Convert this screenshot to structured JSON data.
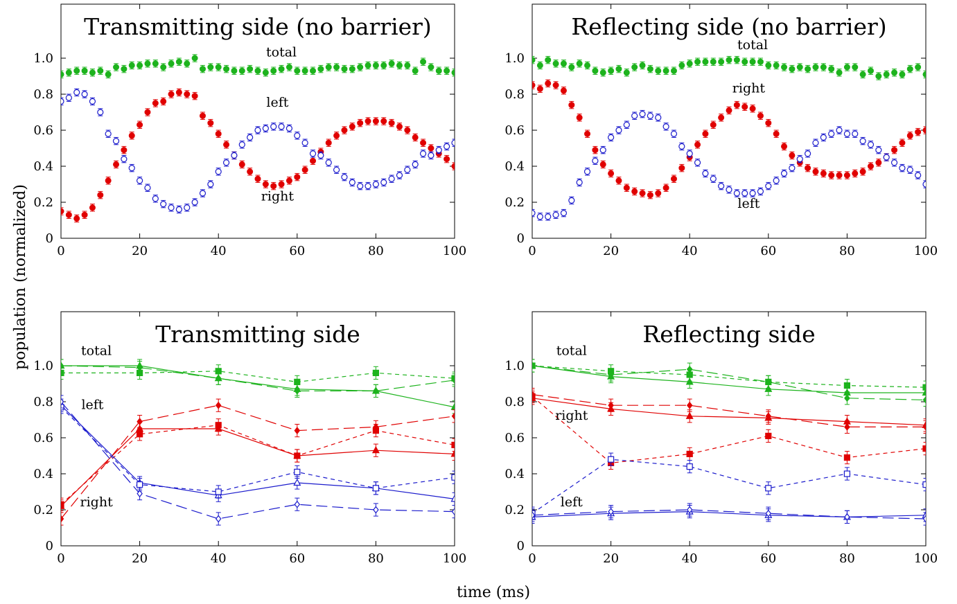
{
  "figure": {
    "ylabel": "population (normalized)",
    "xlabel": "time (ms)"
  },
  "colors": {
    "total": "#1db31d",
    "right": "#e00000",
    "left": "#1a1acc"
  },
  "chart_data": [
    {
      "type": "scatter",
      "title": "Transmitting side (no barrier)",
      "xlim": [
        0,
        100
      ],
      "ylim": [
        0,
        1.3
      ],
      "xticks": [
        0,
        20,
        40,
        60,
        80,
        100
      ],
      "yticks": [
        0,
        0.2,
        0.4,
        0.6,
        0.8,
        1.0
      ],
      "xtick_labels": [
        "0",
        "20",
        "40",
        "60",
        "80",
        "100"
      ],
      "ytick_labels": [
        "0",
        "0.2",
        "0.4",
        "0.6",
        "0.8",
        "1.0"
      ],
      "grid": false,
      "series": [
        {
          "color": "total",
          "marker": "filled-circle",
          "x": [
            0,
            2,
            4,
            6,
            8,
            10,
            12,
            14,
            16,
            18,
            20,
            22,
            24,
            26,
            28,
            30,
            32,
            34,
            36,
            38,
            40,
            42,
            44,
            46,
            48,
            50,
            52,
            54,
            56,
            58,
            60,
            62,
            64,
            66,
            68,
            70,
            72,
            74,
            76,
            78,
            80,
            82,
            84,
            86,
            88,
            90,
            92,
            94,
            96,
            98,
            100
          ],
          "y": [
            0.91,
            0.92,
            0.93,
            0.93,
            0.92,
            0.93,
            0.91,
            0.95,
            0.94,
            0.96,
            0.96,
            0.97,
            0.97,
            0.95,
            0.97,
            0.98,
            0.97,
            1.0,
            0.94,
            0.95,
            0.95,
            0.94,
            0.93,
            0.93,
            0.94,
            0.93,
            0.92,
            0.93,
            0.94,
            0.95,
            0.93,
            0.93,
            0.93,
            0.94,
            0.95,
            0.95,
            0.94,
            0.94,
            0.95,
            0.96,
            0.96,
            0.96,
            0.97,
            0.96,
            0.96,
            0.93,
            0.98,
            0.95,
            0.93,
            0.93,
            0.92
          ]
        },
        {
          "color": "right",
          "marker": "filled-circle",
          "x": [
            0,
            2,
            4,
            6,
            8,
            10,
            12,
            14,
            16,
            18,
            20,
            22,
            24,
            26,
            28,
            30,
            32,
            34,
            36,
            38,
            40,
            42,
            44,
            46,
            48,
            50,
            52,
            54,
            56,
            58,
            60,
            62,
            64,
            66,
            68,
            70,
            72,
            74,
            76,
            78,
            80,
            82,
            84,
            86,
            88,
            90,
            92,
            94,
            96,
            98,
            100
          ],
          "y": [
            0.15,
            0.13,
            0.11,
            0.13,
            0.17,
            0.24,
            0.32,
            0.41,
            0.49,
            0.57,
            0.63,
            0.7,
            0.75,
            0.76,
            0.8,
            0.81,
            0.8,
            0.79,
            0.68,
            0.64,
            0.58,
            0.52,
            0.46,
            0.41,
            0.37,
            0.33,
            0.3,
            0.29,
            0.3,
            0.32,
            0.34,
            0.38,
            0.43,
            0.48,
            0.53,
            0.57,
            0.6,
            0.62,
            0.64,
            0.65,
            0.65,
            0.65,
            0.64,
            0.62,
            0.6,
            0.56,
            0.53,
            0.5,
            0.47,
            0.44,
            0.4
          ]
        },
        {
          "color": "left",
          "marker": "open-circle",
          "x": [
            0,
            2,
            4,
            6,
            8,
            10,
            12,
            14,
            16,
            18,
            20,
            22,
            24,
            26,
            28,
            30,
            32,
            34,
            36,
            38,
            40,
            42,
            44,
            46,
            48,
            50,
            52,
            54,
            56,
            58,
            60,
            62,
            64,
            66,
            68,
            70,
            72,
            74,
            76,
            78,
            80,
            82,
            84,
            86,
            88,
            90,
            92,
            94,
            96,
            98,
            100
          ],
          "y": [
            0.76,
            0.78,
            0.81,
            0.8,
            0.76,
            0.7,
            0.58,
            0.54,
            0.44,
            0.39,
            0.32,
            0.28,
            0.22,
            0.19,
            0.17,
            0.16,
            0.17,
            0.2,
            0.25,
            0.3,
            0.37,
            0.42,
            0.46,
            0.52,
            0.56,
            0.6,
            0.61,
            0.62,
            0.62,
            0.61,
            0.57,
            0.53,
            0.47,
            0.46,
            0.42,
            0.38,
            0.34,
            0.31,
            0.29,
            0.29,
            0.3,
            0.31,
            0.33,
            0.35,
            0.38,
            0.41,
            0.47,
            0.46,
            0.49,
            0.51,
            0.53
          ]
        }
      ],
      "annotations": [
        {
          "text": "total",
          "x": 56,
          "y": 1.01
        },
        {
          "text": "left",
          "x": 55,
          "y": 0.73
        },
        {
          "text": "right",
          "x": 55,
          "y": 0.21
        }
      ]
    },
    {
      "type": "scatter",
      "title": "Reflecting side (no barrier)",
      "xlim": [
        0,
        100
      ],
      "ylim": [
        0,
        1.3
      ],
      "xticks": [
        0,
        20,
        40,
        60,
        80,
        100
      ],
      "yticks": [
        0,
        0.2,
        0.4,
        0.6,
        0.8,
        1.0
      ],
      "xtick_labels": [
        "0",
        "20",
        "40",
        "60",
        "80",
        "100"
      ],
      "ytick_labels": [
        "0",
        "0.2",
        "0.4",
        "0.6",
        "0.8",
        "1.0"
      ],
      "grid": false,
      "series": [
        {
          "color": "total",
          "marker": "filled-circle",
          "x": [
            0,
            2,
            4,
            6,
            8,
            10,
            12,
            14,
            16,
            18,
            20,
            22,
            24,
            26,
            28,
            30,
            32,
            34,
            36,
            38,
            40,
            42,
            44,
            46,
            48,
            50,
            52,
            54,
            56,
            58,
            60,
            62,
            64,
            66,
            68,
            70,
            72,
            74,
            76,
            78,
            80,
            82,
            84,
            86,
            88,
            90,
            92,
            94,
            96,
            98,
            100
          ],
          "y": [
            0.99,
            0.96,
            0.99,
            0.97,
            0.97,
            0.95,
            0.97,
            0.96,
            0.93,
            0.92,
            0.93,
            0.94,
            0.92,
            0.95,
            0.96,
            0.94,
            0.93,
            0.93,
            0.93,
            0.96,
            0.97,
            0.98,
            0.98,
            0.98,
            0.98,
            0.99,
            0.99,
            0.98,
            0.98,
            0.98,
            0.96,
            0.96,
            0.95,
            0.94,
            0.95,
            0.94,
            0.95,
            0.95,
            0.94,
            0.92,
            0.95,
            0.95,
            0.91,
            0.93,
            0.9,
            0.91,
            0.92,
            0.91,
            0.94,
            0.95,
            0.91
          ]
        },
        {
          "color": "right",
          "marker": "filled-circle",
          "x": [
            0,
            2,
            4,
            6,
            8,
            10,
            12,
            14,
            16,
            18,
            20,
            22,
            24,
            26,
            28,
            30,
            32,
            34,
            36,
            38,
            40,
            42,
            44,
            46,
            48,
            50,
            52,
            54,
            56,
            58,
            60,
            62,
            64,
            66,
            68,
            70,
            72,
            74,
            76,
            78,
            80,
            82,
            84,
            86,
            88,
            90,
            92,
            94,
            96,
            98,
            100
          ],
          "y": [
            0.85,
            0.83,
            0.86,
            0.85,
            0.82,
            0.74,
            0.67,
            0.58,
            0.49,
            0.41,
            0.36,
            0.32,
            0.28,
            0.26,
            0.25,
            0.24,
            0.25,
            0.28,
            0.33,
            0.39,
            0.45,
            0.52,
            0.58,
            0.63,
            0.67,
            0.71,
            0.74,
            0.73,
            0.72,
            0.68,
            0.64,
            0.58,
            0.51,
            0.46,
            0.42,
            0.39,
            0.37,
            0.36,
            0.35,
            0.35,
            0.35,
            0.36,
            0.37,
            0.4,
            0.42,
            0.45,
            0.49,
            0.53,
            0.57,
            0.59,
            0.6
          ]
        },
        {
          "color": "left",
          "marker": "open-circle",
          "x": [
            0,
            2,
            4,
            6,
            8,
            10,
            12,
            14,
            16,
            18,
            20,
            22,
            24,
            26,
            28,
            30,
            32,
            34,
            36,
            38,
            40,
            42,
            44,
            46,
            48,
            50,
            52,
            54,
            56,
            58,
            60,
            62,
            64,
            66,
            68,
            70,
            72,
            74,
            76,
            78,
            80,
            82,
            84,
            86,
            88,
            90,
            92,
            94,
            96,
            98,
            100
          ],
          "y": [
            0.14,
            0.12,
            0.12,
            0.13,
            0.14,
            0.21,
            0.31,
            0.37,
            0.43,
            0.49,
            0.56,
            0.6,
            0.63,
            0.68,
            0.69,
            0.68,
            0.67,
            0.62,
            0.58,
            0.51,
            0.47,
            0.42,
            0.36,
            0.33,
            0.29,
            0.27,
            0.25,
            0.25,
            0.25,
            0.26,
            0.29,
            0.32,
            0.36,
            0.39,
            0.44,
            0.47,
            0.53,
            0.56,
            0.58,
            0.6,
            0.58,
            0.58,
            0.54,
            0.52,
            0.49,
            0.45,
            0.42,
            0.39,
            0.38,
            0.35,
            0.3
          ]
        }
      ],
      "annotations": [
        {
          "text": "total",
          "x": 56,
          "y": 1.05
        },
        {
          "text": "right",
          "x": 55,
          "y": 0.81
        },
        {
          "text": "left",
          "x": 55,
          "y": 0.17
        }
      ]
    },
    {
      "type": "line",
      "title": "Transmitting side",
      "xlim": [
        0,
        100
      ],
      "ylim": [
        0,
        1.3
      ],
      "xticks": [
        0,
        20,
        40,
        60,
        80,
        100
      ],
      "yticks": [
        0,
        0.2,
        0.4,
        0.6,
        0.8,
        1.0
      ],
      "xtick_labels": [
        "0",
        "20",
        "40",
        "60",
        "80",
        "100"
      ],
      "ytick_labels": [
        "0",
        "0.2",
        "0.4",
        "0.6",
        "0.8",
        "1.0"
      ],
      "grid": false,
      "x": [
        0,
        20,
        40,
        60,
        80,
        100
      ],
      "series": [
        {
          "color": "total",
          "marker": "triangle",
          "dash": "solid",
          "y": [
            1.0,
            1.0,
            0.93,
            0.87,
            0.86,
            0.77
          ]
        },
        {
          "color": "total",
          "marker": "square",
          "dash": "short",
          "y": [
            0.96,
            0.96,
            0.97,
            0.91,
            0.96,
            0.93
          ]
        },
        {
          "color": "total",
          "marker": "diamond",
          "dash": "long",
          "y": [
            1.0,
            0.99,
            0.93,
            0.86,
            0.86,
            0.92
          ]
        },
        {
          "color": "right",
          "marker": "triangle",
          "dash": "solid",
          "y": [
            0.22,
            0.65,
            0.65,
            0.5,
            0.53,
            0.51
          ]
        },
        {
          "color": "right",
          "marker": "square",
          "dash": "short",
          "y": [
            0.23,
            0.62,
            0.67,
            0.5,
            0.64,
            0.56
          ]
        },
        {
          "color": "right",
          "marker": "diamond",
          "dash": "long",
          "y": [
            0.15,
            0.69,
            0.78,
            0.64,
            0.66,
            0.72
          ]
        },
        {
          "color": "left",
          "marker": "triangle",
          "dash": "solid",
          "y": [
            0.78,
            0.35,
            0.28,
            0.35,
            0.32,
            0.26
          ]
        },
        {
          "color": "left",
          "marker": "square",
          "dash": "short",
          "y": [
            0.77,
            0.34,
            0.3,
            0.41,
            0.32,
            0.38
          ]
        },
        {
          "color": "left",
          "marker": "diamond",
          "dash": "long",
          "y": [
            0.8,
            0.29,
            0.15,
            0.23,
            0.2,
            0.19
          ]
        }
      ],
      "annotations": [
        {
          "text": "total",
          "x": 9,
          "y": 1.06
        },
        {
          "text": "left",
          "x": 8,
          "y": 0.76
        },
        {
          "text": "right",
          "x": 9,
          "y": 0.22
        }
      ]
    },
    {
      "type": "line",
      "title": "Reflecting side",
      "xlim": [
        0,
        100
      ],
      "ylim": [
        0,
        1.3
      ],
      "xticks": [
        0,
        20,
        40,
        60,
        80,
        100
      ],
      "yticks": [
        0,
        0.2,
        0.4,
        0.6,
        0.8,
        1.0
      ],
      "xtick_labels": [
        "0",
        "20",
        "40",
        "60",
        "80",
        "100"
      ],
      "ytick_labels": [
        "0",
        "0.2",
        "0.4",
        "0.6",
        "0.8",
        "1.0"
      ],
      "grid": false,
      "x": [
        0,
        20,
        40,
        60,
        80,
        100
      ],
      "series": [
        {
          "color": "total",
          "marker": "triangle",
          "dash": "solid",
          "y": [
            1.0,
            0.94,
            0.91,
            0.87,
            0.85,
            0.85
          ]
        },
        {
          "color": "total",
          "marker": "square",
          "dash": "short",
          "y": [
            1.0,
            0.97,
            0.95,
            0.91,
            0.89,
            0.88
          ]
        },
        {
          "color": "total",
          "marker": "diamond",
          "dash": "long",
          "y": [
            1.0,
            0.95,
            0.98,
            0.91,
            0.82,
            0.81
          ]
        },
        {
          "color": "right",
          "marker": "triangle",
          "dash": "solid",
          "y": [
            0.82,
            0.76,
            0.72,
            0.71,
            0.69,
            0.67
          ]
        },
        {
          "color": "right",
          "marker": "square",
          "dash": "short",
          "y": [
            0.83,
            0.46,
            0.51,
            0.61,
            0.49,
            0.54
          ]
        },
        {
          "color": "right",
          "marker": "diamond",
          "dash": "long",
          "y": [
            0.84,
            0.78,
            0.78,
            0.72,
            0.66,
            0.66
          ]
        },
        {
          "color": "left",
          "marker": "triangle",
          "dash": "solid",
          "y": [
            0.16,
            0.18,
            0.19,
            0.17,
            0.16,
            0.17
          ]
        },
        {
          "color": "left",
          "marker": "square",
          "dash": "short",
          "y": [
            0.18,
            0.48,
            0.44,
            0.32,
            0.4,
            0.34
          ]
        },
        {
          "color": "left",
          "marker": "diamond",
          "dash": "long",
          "y": [
            0.17,
            0.19,
            0.2,
            0.18,
            0.16,
            0.15
          ]
        }
      ],
      "annotations": [
        {
          "text": "total",
          "x": 10,
          "y": 1.06
        },
        {
          "text": "right",
          "x": 10,
          "y": 0.7
        },
        {
          "text": "left",
          "x": 10,
          "y": 0.22
        }
      ]
    }
  ]
}
